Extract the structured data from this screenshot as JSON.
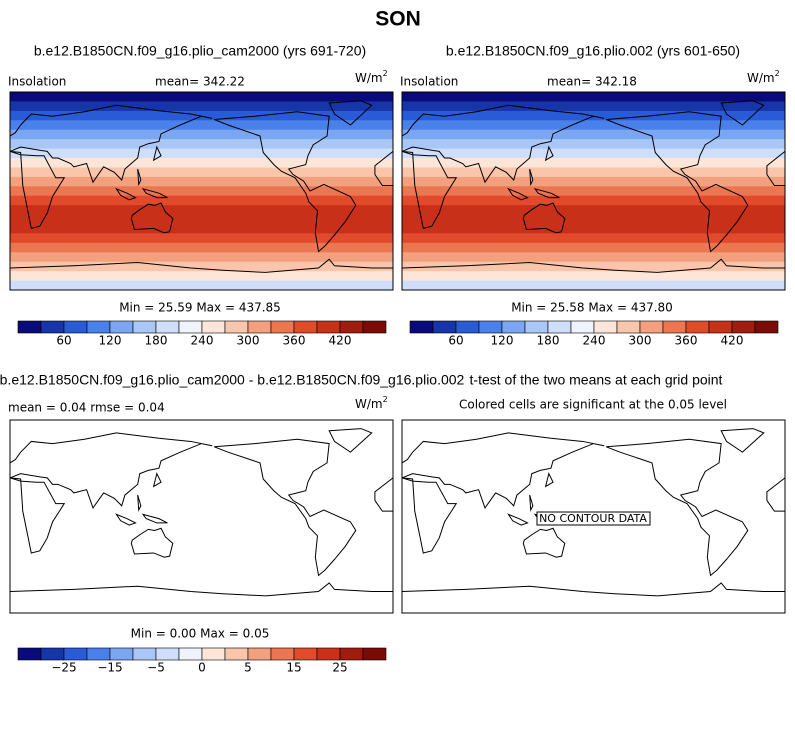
{
  "title": "SON",
  "panels": [
    {
      "title": "b.e12.B1850CN.f09_g16.plio_cam2000 (yrs 691-720)",
      "left": "Insolation",
      "center": "mean= 342.22",
      "units": {
        "base": "W/m",
        "sup": "2"
      },
      "minmax": "Min =  25.59 Max = 437.85",
      "colorbar_labels": [
        "60",
        "120",
        "180",
        "240",
        "300",
        "360",
        "420"
      ]
    },
    {
      "title": "b.e12.B1850CN.f09_g16.plio.002 (yrs 601-650)",
      "left": "Insolation",
      "center": "mean= 342.18",
      "units": {
        "base": "W/m",
        "sup": "2"
      },
      "minmax": "Min =  25.58 Max = 437.80",
      "colorbar_labels": [
        "60",
        "120",
        "180",
        "240",
        "300",
        "360",
        "420"
      ]
    },
    {
      "title": "b.e12.B1850CN.f09_g16.plio_cam2000 - b.e12.B1850CN.f09_g16.plio.002",
      "left": "mean =   0.04    rmse =   0.04",
      "units": {
        "base": "W/m",
        "sup": "2"
      },
      "minmax": "Min =   0.00 Max =   0.05",
      "colorbar_labels": [
        "−25",
        "−15",
        "−5",
        "0",
        "5",
        "15",
        "25"
      ]
    },
    {
      "title": "t-test of the two means at each grid point",
      "subtitle": "Colored cells are significant at the 0.05 level",
      "annotation": "NO CONTOUR DATA"
    }
  ]
}
